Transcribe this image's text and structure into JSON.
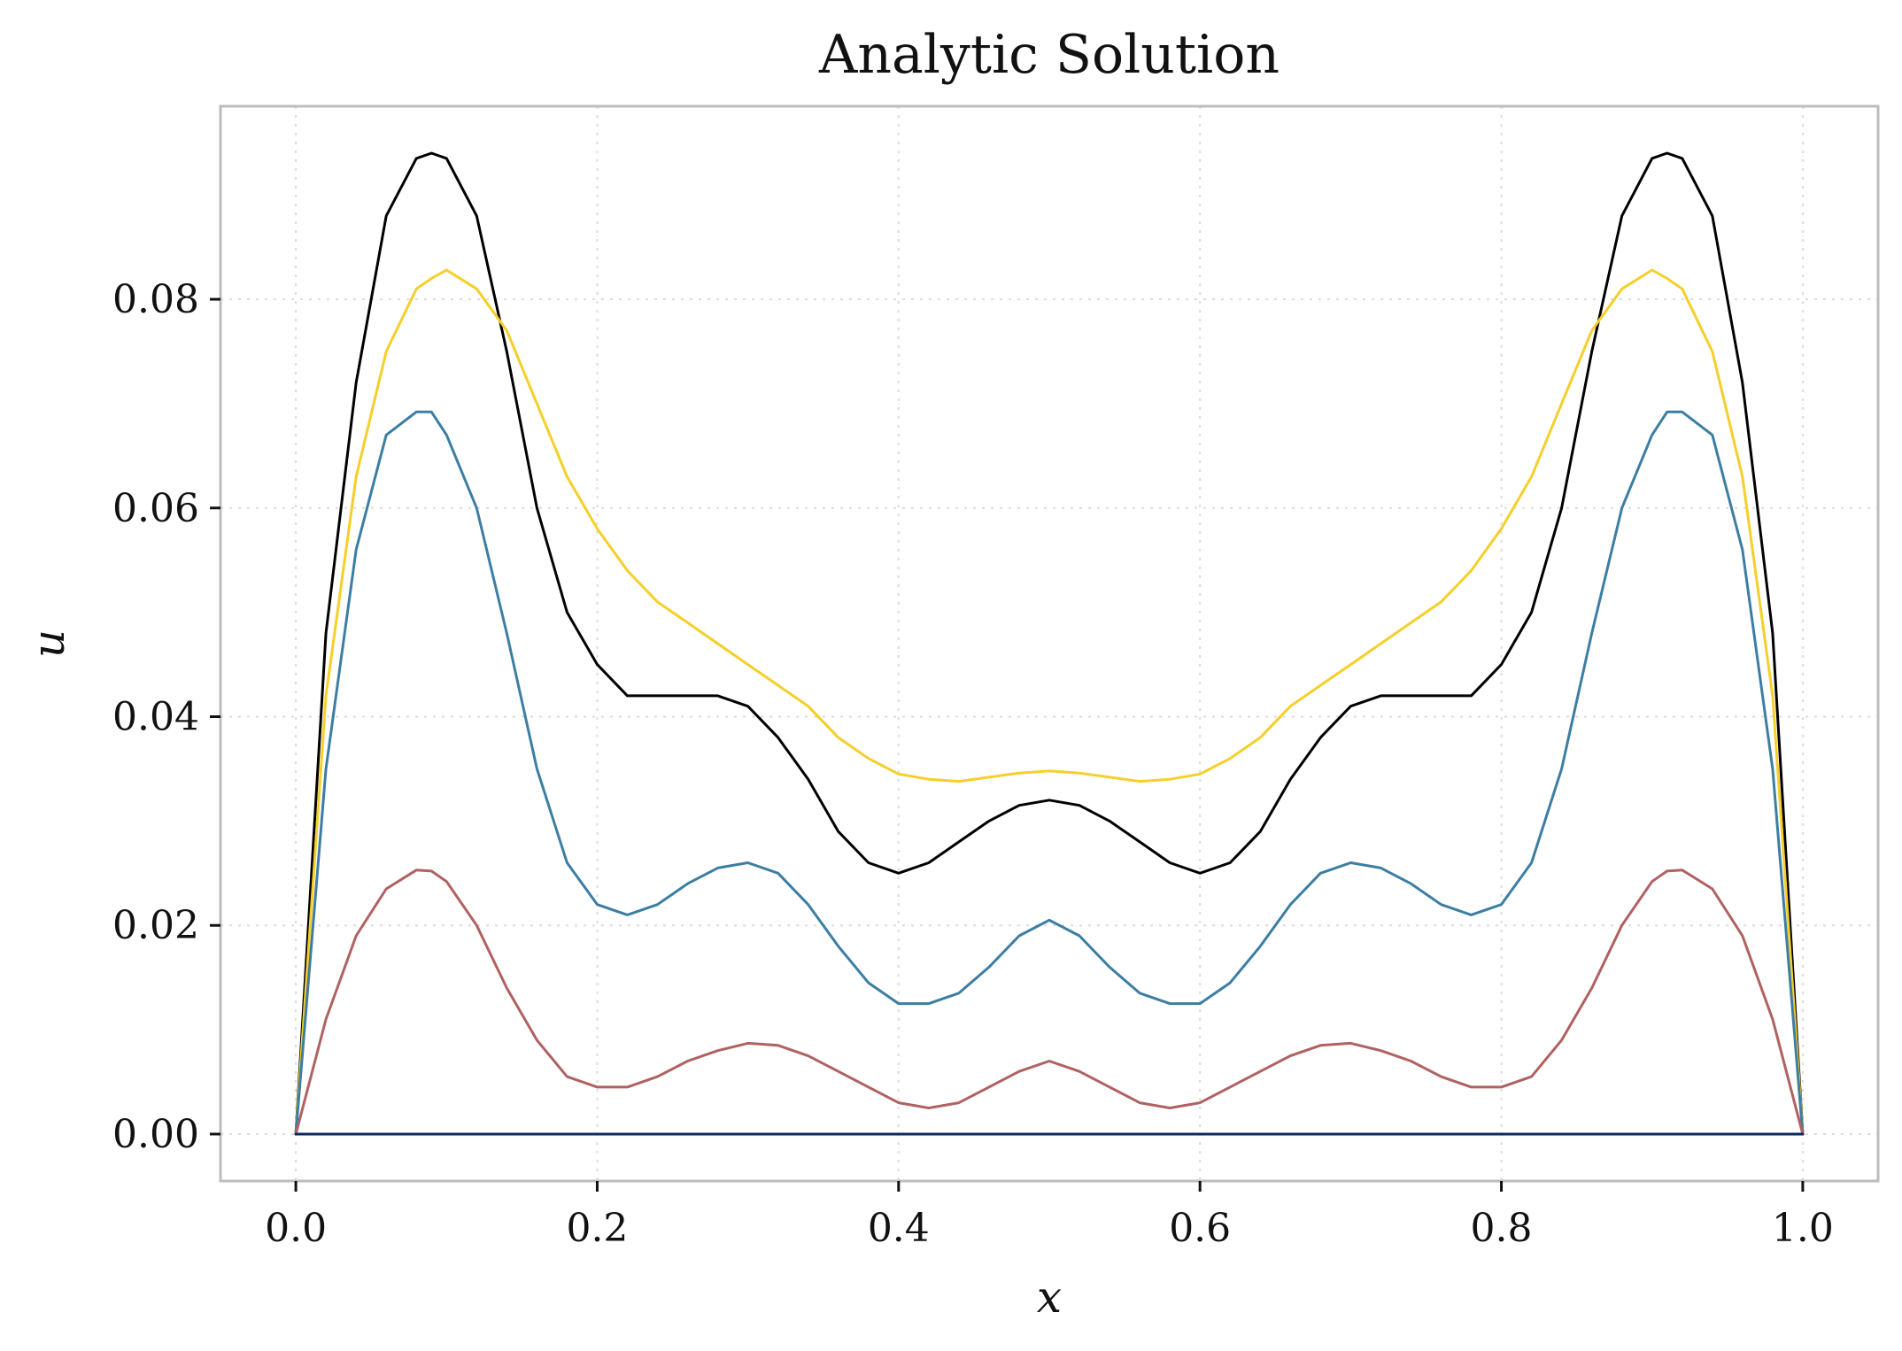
{
  "chart_data": {
    "type": "line",
    "title": "Analytic Solution",
    "xlabel": "x",
    "ylabel": "u",
    "xlim": [
      -0.05,
      1.05
    ],
    "ylim": [
      -0.0045,
      0.0985
    ],
    "xticks": [
      0.0,
      0.2,
      0.4,
      0.6,
      0.8,
      1.0
    ],
    "xtick_labels": [
      "0.0",
      "0.2",
      "0.4",
      "0.6",
      "0.8",
      "1.0"
    ],
    "yticks": [
      0.0,
      0.02,
      0.04,
      0.06,
      0.08
    ],
    "ytick_labels": [
      "0.00",
      "0.02",
      "0.04",
      "0.06",
      "0.08"
    ],
    "grid": true,
    "legend": "none",
    "x": [
      0.0,
      0.02,
      0.04,
      0.06,
      0.08,
      0.09,
      0.1,
      0.12,
      0.14,
      0.16,
      0.18,
      0.2,
      0.22,
      0.24,
      0.26,
      0.28,
      0.3,
      0.32,
      0.34,
      0.36,
      0.38,
      0.4,
      0.42,
      0.44,
      0.46,
      0.48,
      0.5,
      0.52,
      0.54,
      0.56,
      0.58,
      0.6,
      0.62,
      0.64,
      0.66,
      0.68,
      0.7,
      0.72,
      0.74,
      0.76,
      0.78,
      0.8,
      0.82,
      0.84,
      0.86,
      0.88,
      0.9,
      0.91,
      0.92,
      0.94,
      0.96,
      0.98,
      1.0
    ],
    "series": [
      {
        "color": "#000000",
        "values": [
          0.0,
          0.048,
          0.072,
          0.088,
          0.0935,
          0.094,
          0.0935,
          0.088,
          0.075,
          0.06,
          0.05,
          0.045,
          0.042,
          0.042,
          0.042,
          0.042,
          0.041,
          0.038,
          0.034,
          0.029,
          0.026,
          0.025,
          0.026,
          0.028,
          0.03,
          0.0315,
          0.032,
          0.0315,
          0.03,
          0.028,
          0.026,
          0.025,
          0.026,
          0.029,
          0.034,
          0.038,
          0.041,
          0.042,
          0.042,
          0.042,
          0.042,
          0.045,
          0.05,
          0.06,
          0.075,
          0.088,
          0.0935,
          0.094,
          0.0935,
          0.088,
          0.072,
          0.048,
          0.0
        ]
      },
      {
        "color": "#f6cf2a",
        "values": [
          0.0,
          0.042,
          0.063,
          0.075,
          0.081,
          0.082,
          0.0828,
          0.081,
          0.077,
          0.07,
          0.063,
          0.058,
          0.054,
          0.051,
          0.049,
          0.047,
          0.045,
          0.043,
          0.041,
          0.038,
          0.036,
          0.0345,
          0.034,
          0.0338,
          0.0342,
          0.0346,
          0.0348,
          0.0346,
          0.0342,
          0.0338,
          0.034,
          0.0345,
          0.036,
          0.038,
          0.041,
          0.043,
          0.045,
          0.047,
          0.049,
          0.051,
          0.054,
          0.058,
          0.063,
          0.07,
          0.077,
          0.081,
          0.0828,
          0.082,
          0.081,
          0.075,
          0.063,
          0.042,
          0.0
        ]
      },
      {
        "color": "#3c7ea3",
        "values": [
          0.0,
          0.035,
          0.056,
          0.067,
          0.0692,
          0.0692,
          0.067,
          0.06,
          0.048,
          0.035,
          0.026,
          0.022,
          0.021,
          0.022,
          0.024,
          0.0255,
          0.026,
          0.025,
          0.022,
          0.018,
          0.0145,
          0.0125,
          0.0125,
          0.0135,
          0.016,
          0.019,
          0.0205,
          0.019,
          0.016,
          0.0135,
          0.0125,
          0.0125,
          0.0145,
          0.018,
          0.022,
          0.025,
          0.026,
          0.0255,
          0.024,
          0.022,
          0.021,
          0.022,
          0.026,
          0.035,
          0.048,
          0.06,
          0.067,
          0.0692,
          0.0692,
          0.067,
          0.056,
          0.035,
          0.0
        ]
      },
      {
        "color": "#b06161",
        "values": [
          0.0,
          0.011,
          0.019,
          0.0235,
          0.0253,
          0.0252,
          0.0242,
          0.02,
          0.014,
          0.009,
          0.0055,
          0.0045,
          0.0045,
          0.0055,
          0.007,
          0.008,
          0.0087,
          0.0085,
          0.0075,
          0.006,
          0.0045,
          0.003,
          0.0025,
          0.003,
          0.0045,
          0.006,
          0.007,
          0.006,
          0.0045,
          0.003,
          0.0025,
          0.003,
          0.0045,
          0.006,
          0.0075,
          0.0085,
          0.0087,
          0.008,
          0.007,
          0.0055,
          0.0045,
          0.0045,
          0.0055,
          0.009,
          0.014,
          0.02,
          0.0242,
          0.0252,
          0.0253,
          0.0235,
          0.019,
          0.011,
          0.0
        ]
      },
      {
        "color": "#0d2a5c",
        "values": [
          0.0,
          0.0,
          0.0,
          0.0,
          0.0,
          0.0,
          0.0,
          0.0,
          0.0,
          0.0,
          0.0,
          0.0,
          0.0,
          0.0,
          0.0,
          0.0,
          0.0,
          0.0,
          0.0,
          0.0,
          0.0,
          0.0,
          0.0,
          0.0,
          0.0,
          0.0,
          0.0,
          0.0,
          0.0,
          0.0,
          0.0,
          0.0,
          0.0,
          0.0,
          0.0,
          0.0,
          0.0,
          0.0,
          0.0,
          0.0,
          0.0,
          0.0,
          0.0,
          0.0,
          0.0,
          0.0,
          0.0,
          0.0,
          0.0,
          0.0,
          0.0,
          0.0,
          0.0
        ]
      }
    ]
  }
}
